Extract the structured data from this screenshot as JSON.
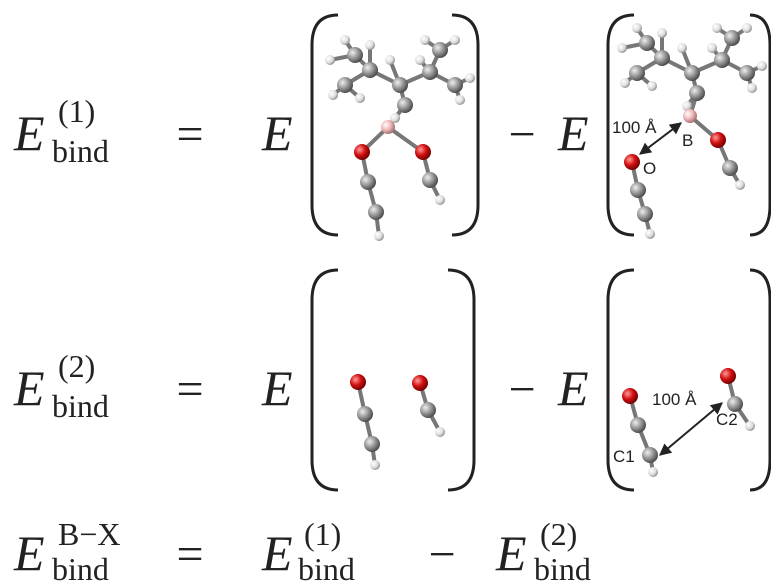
{
  "rows": [
    {
      "lhs": {
        "base": "E",
        "sup": "(1)",
        "sub": "bind"
      },
      "equals": "=",
      "term1": "E",
      "minus": "−",
      "term2": "E",
      "annotations": [
        "100 Å",
        "B",
        "O"
      ]
    },
    {
      "lhs": {
        "base": "E",
        "sup": "(2)",
        "sub": "bind"
      },
      "equals": "=",
      "term1": "E",
      "minus": "−",
      "term2": "E",
      "annotations": [
        "100 Å",
        "C1",
        "C2"
      ]
    },
    {
      "lhs": {
        "base": "E",
        "sup": "B−X",
        "sub": "bind"
      },
      "equals": "=",
      "rhs1": {
        "base": "E",
        "sup": "(1)",
        "sub": "bind"
      },
      "minus": "−",
      "rhs2": {
        "base": "E",
        "sup": "(2)",
        "sub": "bind"
      }
    }
  ]
}
